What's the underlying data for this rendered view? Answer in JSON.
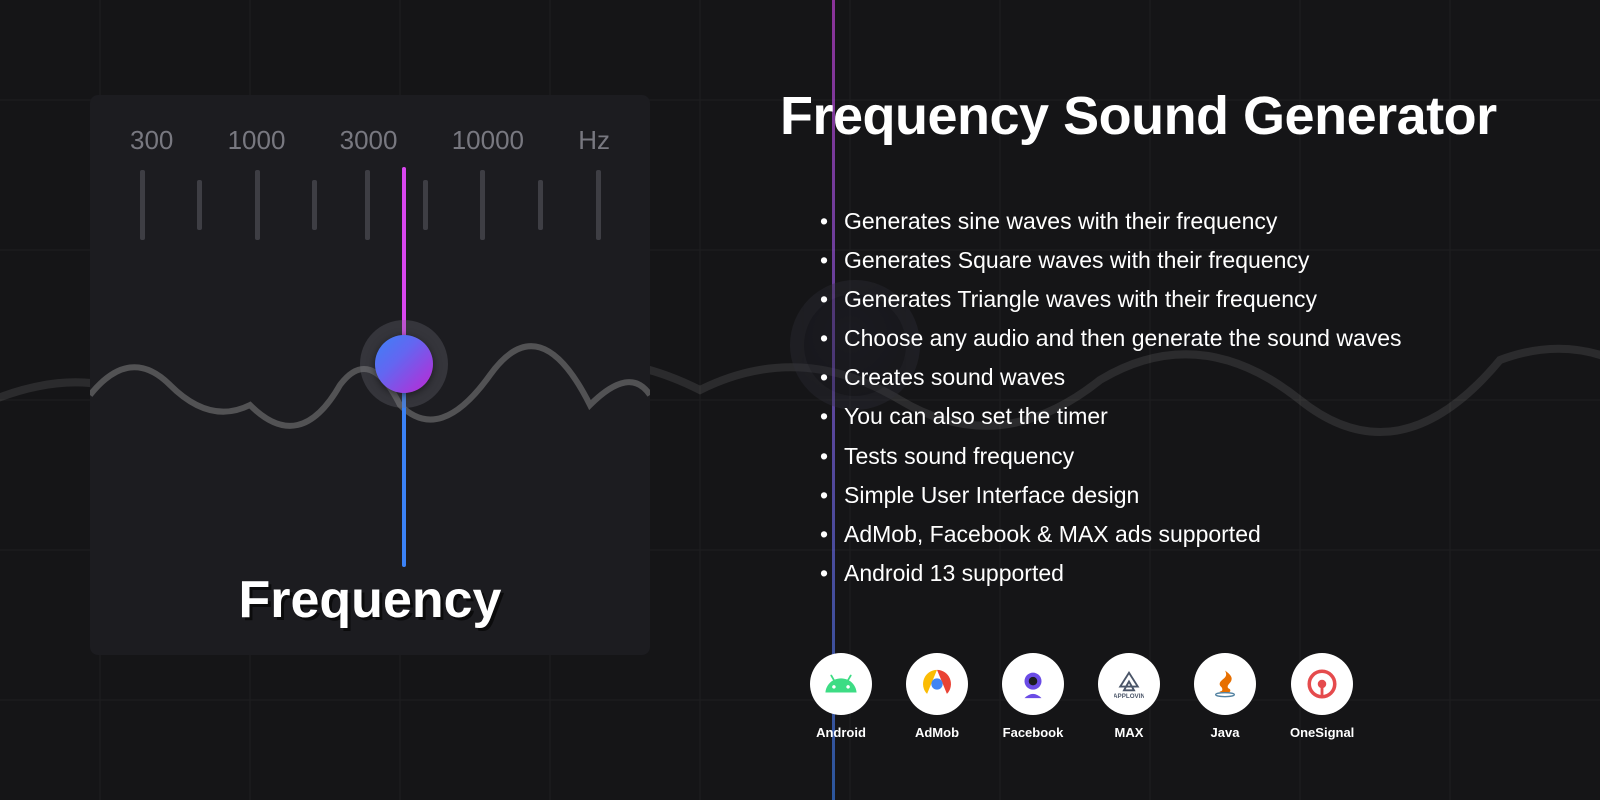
{
  "title": "Frequency Sound Generator",
  "widget": {
    "title": "Frequency",
    "scale_labels": [
      "300",
      "1000",
      "3000",
      "10000",
      "Hz"
    ],
    "unit": "Hz",
    "indicator_position_pct": 49,
    "colors": {
      "bg": "#1c1c20",
      "tick": "#3e3e44",
      "label": "#787880",
      "gradient_top": "#d946ef",
      "gradient_bottom": "#3b82f6",
      "knob_ring": "rgba(120,120,130,0.28)"
    },
    "ticks": [
      {
        "pos_pct": 2,
        "type": "major"
      },
      {
        "pos_pct": 14,
        "type": "minor"
      },
      {
        "pos_pct": 26,
        "type": "major"
      },
      {
        "pos_pct": 38,
        "type": "minor"
      },
      {
        "pos_pct": 49,
        "type": "major"
      },
      {
        "pos_pct": 61,
        "type": "minor"
      },
      {
        "pos_pct": 73,
        "type": "major"
      },
      {
        "pos_pct": 85,
        "type": "minor"
      },
      {
        "pos_pct": 97,
        "type": "major"
      }
    ]
  },
  "features": [
    "Generates sine waves with their frequency",
    "Generates Square waves with their frequency",
    "Generates Triangle waves with their frequency",
    "Choose any audio and then generate the sound waves",
    "Creates sound waves",
    "You can also set the timer",
    "Tests sound frequency",
    "Simple User Interface design",
    "AdMob, Facebook & MAX ads supported",
    "Android 13 supported"
  ],
  "tech": [
    {
      "label": "Android",
      "icon": "android",
      "color": "#3ddc84"
    },
    {
      "label": "AdMob",
      "icon": "admob",
      "color": "#ea4335"
    },
    {
      "label": "Facebook",
      "icon": "facebook",
      "color": "#6b4ce6"
    },
    {
      "label": "MAX",
      "icon": "max",
      "color": "#4a5568"
    },
    {
      "label": "Java",
      "icon": "java",
      "color": "#e76f00"
    },
    {
      "label": "OneSignal",
      "icon": "onesignal",
      "color": "#e54b4d"
    }
  ],
  "colors": {
    "page_bg": "#151517",
    "text": "#ffffff"
  }
}
